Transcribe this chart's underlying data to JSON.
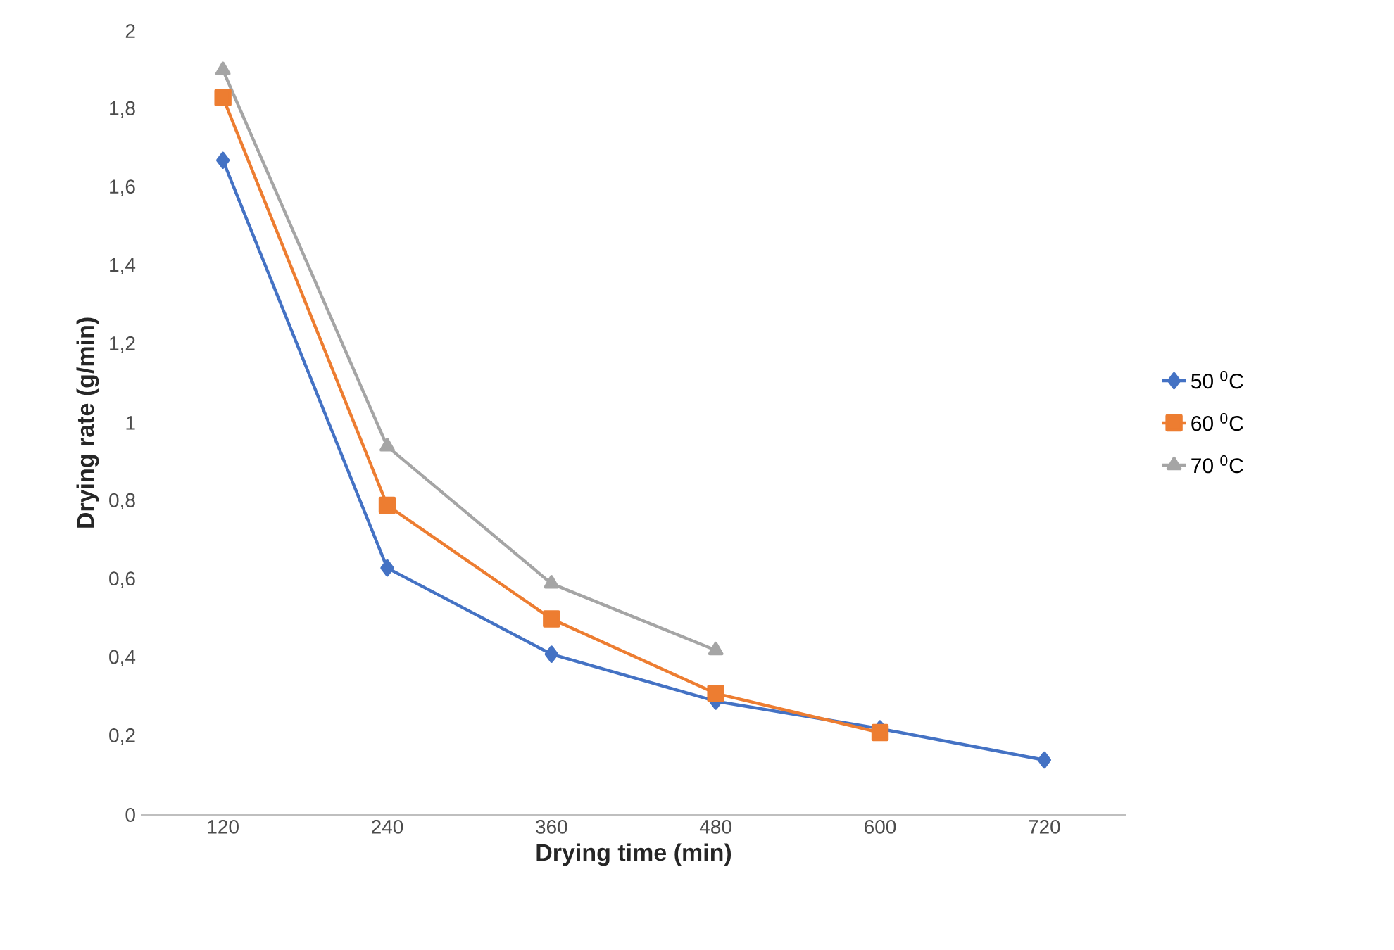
{
  "chart_data": {
    "type": "line",
    "xlabel": "Drying time (min)",
    "ylabel": "Drying rate (g/min)",
    "categories": [
      "120",
      "240",
      "360",
      "480",
      "600",
      "720"
    ],
    "series": [
      {
        "name": "50 $^{0}$C",
        "color": "#4472c4",
        "marker": "diamond",
        "values": [
          1.67,
          0.63,
          0.41,
          0.29,
          0.22,
          0.14
        ]
      },
      {
        "name": "60 $^{0}$C",
        "color": "#ed7d31",
        "marker": "square",
        "values": [
          1.83,
          0.79,
          0.5,
          0.31,
          0.21,
          null
        ]
      },
      {
        "name": "70 $^{0}$C",
        "color": "#a5a5a5",
        "marker": "triangle",
        "values": [
          1.9,
          0.94,
          0.59,
          0.42,
          null,
          null
        ]
      }
    ],
    "ylim": [
      0,
      2
    ],
    "yticks": [
      0,
      {
        "value": 0.2,
        "label": "0,2"
      },
      {
        "value": 0.4,
        "label": "0,4"
      },
      {
        "value": 0.6,
        "label": "0,6"
      },
      {
        "value": 0.8,
        "label": "0,8"
      },
      1,
      {
        "value": 1.2,
        "label": "1,2"
      },
      {
        "value": 1.4,
        "label": "1,4"
      },
      {
        "value": 1.6,
        "label": "1,6"
      },
      {
        "value": 1.8,
        "label": "1,8"
      },
      2
    ],
    "grid": false,
    "legend": "right"
  }
}
